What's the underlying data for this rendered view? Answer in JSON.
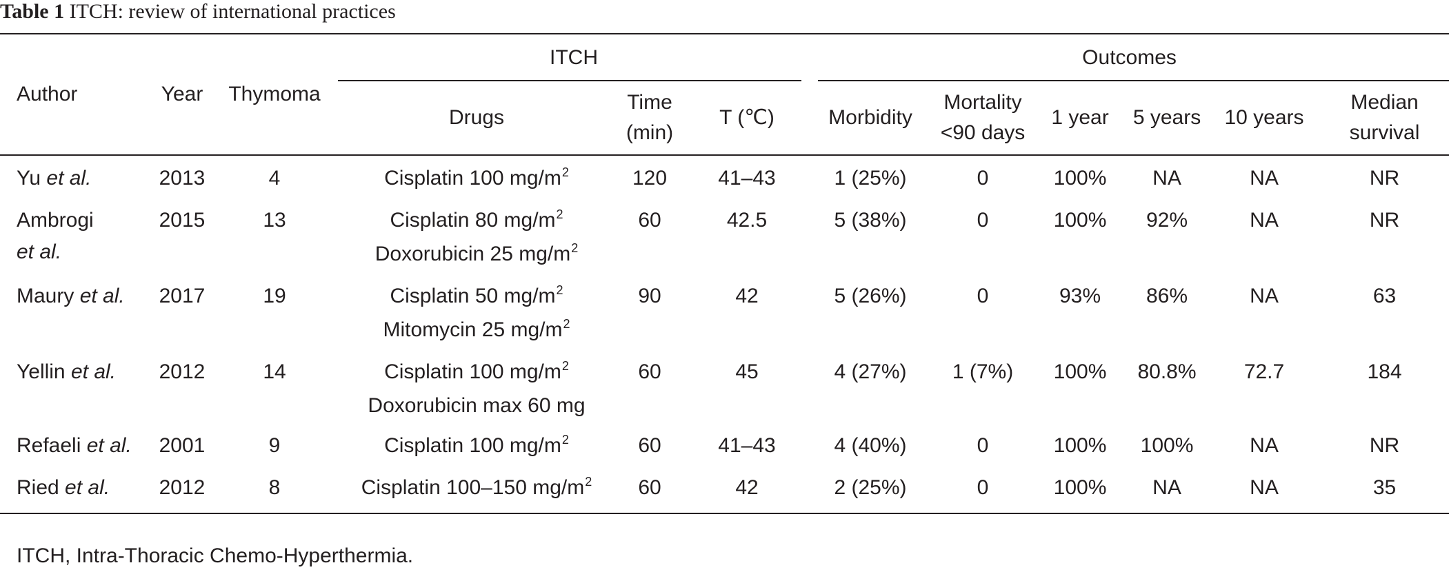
{
  "caption": {
    "label": "Table 1",
    "title": "ITCH: review of international practices"
  },
  "header": {
    "author": "Author",
    "year": "Year",
    "thymoma": "Thymoma",
    "itch_group": "ITCH",
    "outcomes_group": "Outcomes",
    "drugs": "Drugs",
    "time_line1": "Time",
    "time_line2": "(min)",
    "temp": "T (℃)",
    "morbidity": "Morbidity",
    "mortality_line1": "Mortality",
    "mortality_line2": "<90 days",
    "one_year": "1 year",
    "five_years": "5 years",
    "ten_years": "10 years",
    "median_line1": "Median",
    "median_line2": "survival"
  },
  "rows": [
    {
      "author": "Yu",
      "etal": "et al.",
      "author_wrap": false,
      "year": "2013",
      "thymoma": "4",
      "drugs": [
        {
          "text": "Cisplatin 100 mg/m",
          "sup": "2"
        }
      ],
      "time": "120",
      "temp": "41–43",
      "morbidity": "1 (25%)",
      "mortality": "0",
      "one_year": "100%",
      "five_years": "NA",
      "ten_years": "NA",
      "median": "NR"
    },
    {
      "author": "Ambrogi",
      "etal": "et al.",
      "author_wrap": true,
      "year": "2015",
      "thymoma": "13",
      "drugs": [
        {
          "text": "Cisplatin 80 mg/m",
          "sup": "2"
        },
        {
          "text": "Doxorubicin 25 mg/m",
          "sup": "2"
        }
      ],
      "time": "60",
      "temp": "42.5",
      "morbidity": "5 (38%)",
      "mortality": "0",
      "one_year": "100%",
      "five_years": "92%",
      "ten_years": "NA",
      "median": "NR"
    },
    {
      "author": "Maury",
      "etal": "et al.",
      "author_wrap": false,
      "year": "2017",
      "thymoma": "19",
      "drugs": [
        {
          "text": "Cisplatin 50 mg/m",
          "sup": "2"
        },
        {
          "text": "Mitomycin 25 mg/m",
          "sup": "2"
        }
      ],
      "time": "90",
      "temp": "42",
      "morbidity": "5 (26%)",
      "mortality": "0",
      "one_year": "93%",
      "five_years": "86%",
      "ten_years": "NA",
      "median": "63"
    },
    {
      "author": "Yellin",
      "etal": "et al.",
      "author_wrap": false,
      "year": "2012",
      "thymoma": "14",
      "drugs": [
        {
          "text": "Cisplatin 100 mg/m",
          "sup": "2"
        },
        {
          "text": "Doxorubicin max 60 mg",
          "sup": ""
        }
      ],
      "time": "60",
      "temp": "45",
      "morbidity": "4 (27%)",
      "mortality": "1 (7%)",
      "one_year": "100%",
      "five_years": "80.8%",
      "ten_years": "72.7",
      "median": "184"
    },
    {
      "author": "Refaeli",
      "etal": "et al.",
      "author_wrap": false,
      "year": "2001",
      "thymoma": "9",
      "drugs": [
        {
          "text": "Cisplatin 100 mg/m",
          "sup": "2"
        }
      ],
      "time": "60",
      "temp": "41–43",
      "morbidity": "4 (40%)",
      "mortality": "0",
      "one_year": "100%",
      "five_years": "100%",
      "ten_years": "NA",
      "median": "NR"
    },
    {
      "author": "Ried",
      "etal": "et al.",
      "author_wrap": false,
      "year": "2012",
      "thymoma": "8",
      "drugs": [
        {
          "text": "Cisplatin 100–150 mg/m",
          "sup": "2"
        }
      ],
      "time": "60",
      "temp": "42",
      "morbidity": "2 (25%)",
      "mortality": "0",
      "one_year": "100%",
      "five_years": "NA",
      "ten_years": "NA",
      "median": "35"
    }
  ],
  "footnote": "ITCH, Intra-Thoracic Chemo-Hyperthermia."
}
